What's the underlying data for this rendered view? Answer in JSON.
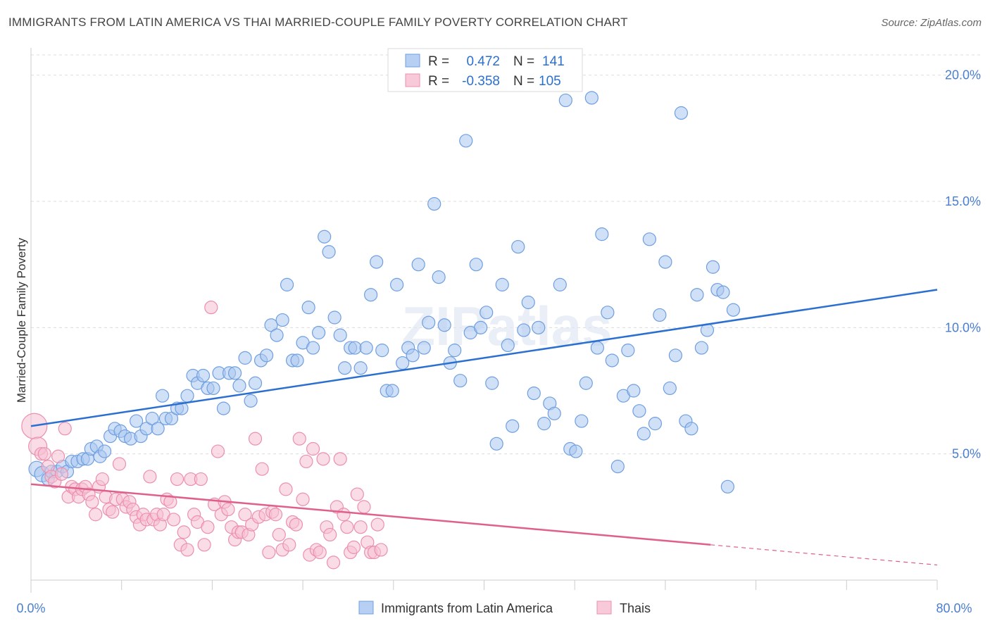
{
  "title": "IMMIGRANTS FROM LATIN AMERICA VS THAI MARRIED-COUPLE FAMILY POVERTY CORRELATION CHART",
  "source": "Source: ZipAtlas.com",
  "watermark": "ZIPatlas",
  "colors": {
    "blue": "#6f9fe0",
    "blue_fill": "#a9c6f0",
    "blue_line": "#2b6fd0",
    "pink": "#ec8fae",
    "pink_fill": "#f6bfd1",
    "pink_line": "#e0608d",
    "tick_text": "#4a7fd0"
  },
  "legend": {
    "rows": [
      {
        "r_label": "R =",
        "r_value": "0.472",
        "n_label": "N =",
        "n_value": "141",
        "color": "blue"
      },
      {
        "r_label": "R =",
        "r_value": "-0.358",
        "n_label": "N =",
        "n_value": "105",
        "color": "pink"
      }
    ]
  },
  "bottom_legend": [
    "Immigrants from Latin America",
    "Thais"
  ],
  "chart_data": {
    "type": "scatter",
    "title": "IMMIGRANTS FROM LATIN AMERICA VS THAI MARRIED-COUPLE FAMILY POVERTY CORRELATION CHART",
    "xlabel": "",
    "ylabel": "Married-Couple Family Poverty",
    "xlim": [
      0,
      80
    ],
    "ylim": [
      0,
      20.8
    ],
    "x_tick_labels": [
      "0.0%",
      "80.0%"
    ],
    "y_ticks": [
      5,
      10,
      15,
      20
    ],
    "y_tick_labels": [
      "5.0%",
      "10.0%",
      "15.0%",
      "20.0%"
    ],
    "grid": true,
    "legend_position": "top-center",
    "series": [
      {
        "name": "Immigrants from Latin America",
        "color": "blue",
        "trend": {
          "x": [
            0,
            80
          ],
          "y": [
            6.1,
            11.5
          ]
        },
        "points": [
          [
            0.5,
            4.4
          ],
          [
            1.0,
            4.2
          ],
          [
            1.5,
            4.0
          ],
          [
            1.8,
            4.3
          ],
          [
            2.3,
            4.3
          ],
          [
            2.8,
            4.5
          ],
          [
            3.2,
            4.3
          ],
          [
            3.6,
            4.7
          ],
          [
            4.1,
            4.7
          ],
          [
            4.6,
            4.8
          ],
          [
            5.0,
            4.8
          ],
          [
            5.3,
            5.2
          ],
          [
            5.8,
            5.3
          ],
          [
            6.1,
            4.9
          ],
          [
            6.5,
            5.1
          ],
          [
            7.0,
            5.7
          ],
          [
            7.4,
            6.0
          ],
          [
            7.9,
            5.9
          ],
          [
            8.3,
            5.7
          ],
          [
            8.8,
            5.6
          ],
          [
            9.3,
            6.3
          ],
          [
            9.7,
            5.7
          ],
          [
            10.2,
            6.0
          ],
          [
            10.7,
            6.4
          ],
          [
            11.2,
            6.0
          ],
          [
            11.6,
            7.3
          ],
          [
            11.9,
            6.4
          ],
          [
            12.4,
            6.4
          ],
          [
            12.9,
            6.8
          ],
          [
            13.3,
            6.8
          ],
          [
            13.8,
            7.3
          ],
          [
            14.3,
            8.1
          ],
          [
            14.7,
            7.8
          ],
          [
            15.2,
            8.1
          ],
          [
            15.6,
            7.6
          ],
          [
            16.1,
            7.6
          ],
          [
            16.6,
            8.2
          ],
          [
            17.0,
            6.8
          ],
          [
            17.5,
            8.2
          ],
          [
            18.0,
            8.2
          ],
          [
            18.4,
            7.7
          ],
          [
            18.9,
            8.8
          ],
          [
            19.4,
            7.1
          ],
          [
            19.8,
            7.8
          ],
          [
            20.3,
            8.7
          ],
          [
            20.8,
            8.9
          ],
          [
            21.2,
            10.1
          ],
          [
            21.7,
            9.7
          ],
          [
            22.2,
            10.3
          ],
          [
            22.6,
            11.7
          ],
          [
            23.1,
            8.7
          ],
          [
            23.5,
            8.7
          ],
          [
            24.0,
            9.4
          ],
          [
            24.5,
            10.8
          ],
          [
            24.9,
            9.2
          ],
          [
            25.4,
            9.8
          ],
          [
            25.9,
            13.6
          ],
          [
            26.3,
            13.0
          ],
          [
            26.8,
            10.4
          ],
          [
            27.3,
            9.7
          ],
          [
            27.7,
            8.4
          ],
          [
            28.2,
            9.2
          ],
          [
            28.6,
            9.2
          ],
          [
            29.1,
            8.4
          ],
          [
            29.6,
            9.2
          ],
          [
            30.0,
            11.3
          ],
          [
            30.5,
            12.6
          ],
          [
            31.0,
            9.1
          ],
          [
            31.4,
            7.5
          ],
          [
            31.9,
            7.5
          ],
          [
            32.3,
            11.7
          ],
          [
            32.8,
            8.6
          ],
          [
            33.3,
            9.2
          ],
          [
            33.7,
            8.9
          ],
          [
            34.2,
            12.5
          ],
          [
            34.7,
            9.2
          ],
          [
            35.1,
            10.2
          ],
          [
            35.6,
            14.9
          ],
          [
            36.0,
            12.0
          ],
          [
            36.5,
            10.1
          ],
          [
            37.0,
            8.6
          ],
          [
            37.4,
            9.1
          ],
          [
            37.9,
            7.9
          ],
          [
            38.4,
            17.4
          ],
          [
            38.8,
            9.8
          ],
          [
            39.3,
            12.5
          ],
          [
            39.7,
            10.0
          ],
          [
            40.2,
            10.6
          ],
          [
            40.7,
            7.8
          ],
          [
            41.1,
            5.4
          ],
          [
            41.6,
            11.7
          ],
          [
            42.1,
            9.3
          ],
          [
            42.5,
            6.1
          ],
          [
            43.0,
            13.2
          ],
          [
            43.5,
            9.9
          ],
          [
            43.9,
            11.0
          ],
          [
            44.4,
            7.4
          ],
          [
            44.8,
            10.0
          ],
          [
            45.3,
            6.2
          ],
          [
            45.8,
            7.0
          ],
          [
            46.2,
            6.6
          ],
          [
            46.7,
            11.7
          ],
          [
            47.2,
            19.0
          ],
          [
            47.6,
            5.2
          ],
          [
            48.1,
            5.1
          ],
          [
            48.6,
            6.3
          ],
          [
            49.0,
            7.8
          ],
          [
            49.5,
            19.1
          ],
          [
            50.0,
            9.2
          ],
          [
            50.4,
            13.7
          ],
          [
            50.9,
            10.6
          ],
          [
            51.3,
            8.7
          ],
          [
            51.8,
            4.5
          ],
          [
            52.3,
            7.3
          ],
          [
            52.7,
            9.1
          ],
          [
            53.2,
            7.5
          ],
          [
            53.7,
            6.7
          ],
          [
            54.1,
            5.8
          ],
          [
            54.6,
            13.5
          ],
          [
            55.1,
            6.2
          ],
          [
            55.5,
            10.5
          ],
          [
            56.0,
            12.6
          ],
          [
            56.4,
            7.6
          ],
          [
            56.9,
            8.9
          ],
          [
            57.4,
            18.5
          ],
          [
            57.8,
            6.3
          ],
          [
            58.3,
            6.0
          ],
          [
            58.8,
            11.3
          ],
          [
            59.2,
            9.2
          ],
          [
            59.7,
            9.9
          ],
          [
            60.2,
            12.4
          ],
          [
            60.6,
            11.5
          ],
          [
            61.1,
            11.4
          ],
          [
            61.5,
            3.7
          ],
          [
            62.0,
            10.7
          ]
        ]
      },
      {
        "name": "Thais",
        "color": "pink",
        "trend": {
          "x": [
            0,
            60
          ],
          "y": [
            3.8,
            1.4
          ]
        },
        "trend_dashed": {
          "x": [
            60,
            80
          ],
          "y": [
            1.4,
            0.6
          ]
        },
        "points": [
          [
            0.3,
            6.1
          ],
          [
            0.6,
            5.3
          ],
          [
            0.9,
            5.0
          ],
          [
            1.2,
            5.0
          ],
          [
            1.5,
            4.5
          ],
          [
            1.8,
            4.1
          ],
          [
            2.1,
            3.9
          ],
          [
            2.4,
            4.9
          ],
          [
            2.7,
            4.2
          ],
          [
            3.0,
            6.0
          ],
          [
            3.3,
            3.3
          ],
          [
            3.6,
            3.7
          ],
          [
            3.9,
            3.6
          ],
          [
            4.2,
            3.3
          ],
          [
            4.5,
            3.6
          ],
          [
            4.8,
            3.7
          ],
          [
            5.1,
            3.4
          ],
          [
            5.4,
            3.1
          ],
          [
            5.7,
            2.6
          ],
          [
            6.0,
            3.7
          ],
          [
            6.3,
            4.0
          ],
          [
            6.6,
            3.3
          ],
          [
            6.9,
            2.8
          ],
          [
            7.2,
            2.7
          ],
          [
            7.5,
            3.2
          ],
          [
            7.8,
            4.6
          ],
          [
            8.1,
            3.2
          ],
          [
            8.4,
            2.9
          ],
          [
            8.7,
            3.1
          ],
          [
            9.0,
            2.8
          ],
          [
            9.3,
            2.5
          ],
          [
            9.6,
            2.2
          ],
          [
            9.9,
            2.6
          ],
          [
            10.2,
            2.4
          ],
          [
            10.5,
            4.1
          ],
          [
            10.8,
            2.4
          ],
          [
            11.1,
            2.6
          ],
          [
            11.4,
            2.2
          ],
          [
            11.7,
            2.6
          ],
          [
            12.0,
            3.2
          ],
          [
            12.3,
            3.1
          ],
          [
            12.6,
            2.4
          ],
          [
            12.9,
            4.0
          ],
          [
            13.2,
            1.4
          ],
          [
            13.5,
            1.9
          ],
          [
            13.8,
            1.2
          ],
          [
            14.1,
            4.0
          ],
          [
            14.4,
            2.6
          ],
          [
            14.7,
            2.3
          ],
          [
            15.0,
            4.0
          ],
          [
            15.3,
            1.4
          ],
          [
            15.6,
            2.1
          ],
          [
            15.9,
            10.8
          ],
          [
            16.2,
            3.0
          ],
          [
            16.5,
            5.1
          ],
          [
            16.8,
            2.6
          ],
          [
            17.1,
            3.1
          ],
          [
            17.4,
            2.8
          ],
          [
            17.7,
            2.1
          ],
          [
            18.0,
            1.6
          ],
          [
            18.3,
            1.9
          ],
          [
            18.6,
            1.9
          ],
          [
            18.9,
            2.6
          ],
          [
            19.2,
            1.8
          ],
          [
            19.5,
            2.2
          ],
          [
            19.8,
            5.6
          ],
          [
            20.1,
            2.5
          ],
          [
            20.4,
            4.4
          ],
          [
            20.7,
            2.6
          ],
          [
            21.0,
            1.1
          ],
          [
            21.3,
            2.7
          ],
          [
            21.6,
            2.6
          ],
          [
            21.9,
            1.8
          ],
          [
            22.2,
            1.2
          ],
          [
            22.5,
            3.6
          ],
          [
            22.8,
            1.4
          ],
          [
            23.1,
            2.3
          ],
          [
            23.4,
            2.2
          ],
          [
            23.7,
            5.6
          ],
          [
            24.0,
            3.2
          ],
          [
            24.3,
            4.7
          ],
          [
            24.6,
            1.0
          ],
          [
            24.9,
            5.2
          ],
          [
            25.2,
            1.2
          ],
          [
            25.5,
            1.1
          ],
          [
            25.8,
            4.8
          ],
          [
            26.1,
            2.1
          ],
          [
            26.4,
            1.8
          ],
          [
            26.7,
            0.7
          ],
          [
            27.0,
            2.9
          ],
          [
            27.3,
            4.8
          ],
          [
            27.6,
            2.6
          ],
          [
            27.9,
            2.1
          ],
          [
            28.2,
            1.1
          ],
          [
            28.5,
            1.3
          ],
          [
            28.8,
            3.4
          ],
          [
            29.1,
            2.1
          ],
          [
            29.4,
            2.9
          ],
          [
            29.7,
            1.5
          ],
          [
            30.0,
            1.1
          ],
          [
            30.3,
            1.1
          ],
          [
            30.6,
            2.2
          ],
          [
            30.9,
            1.2
          ]
        ]
      }
    ]
  }
}
